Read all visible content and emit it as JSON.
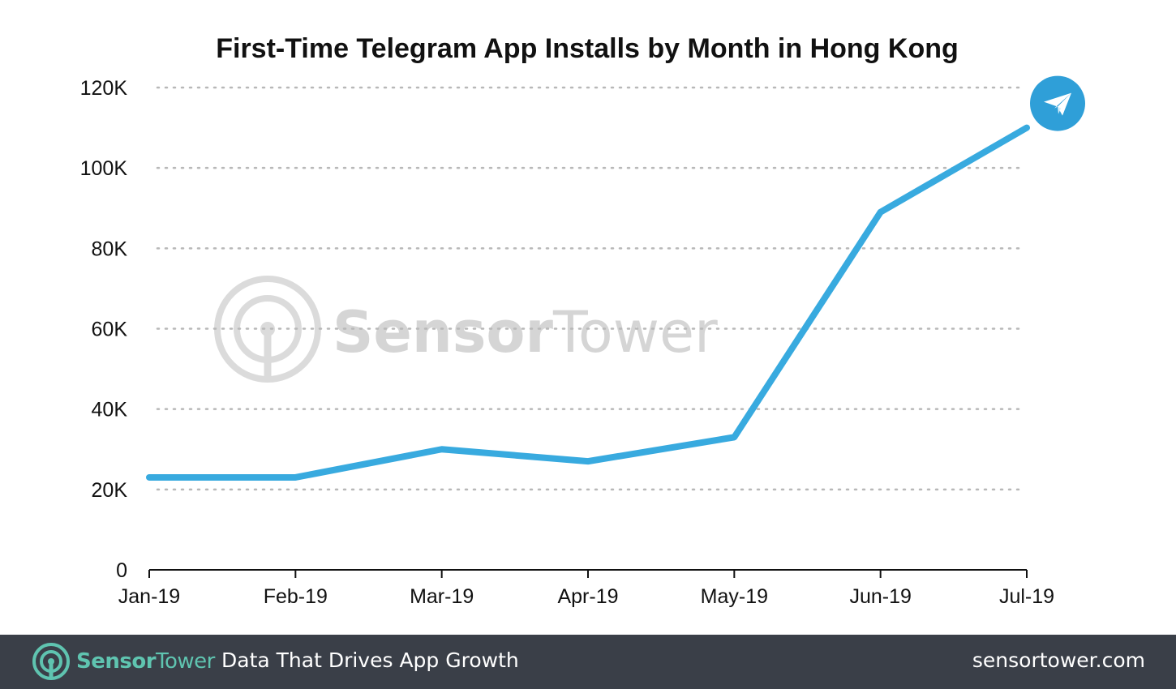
{
  "chart_data": {
    "type": "line",
    "title": "First-Time Telegram App Installs by Month in Hong Kong",
    "xlabel": "",
    "ylabel": "",
    "categories": [
      "Jan-19",
      "Feb-19",
      "Mar-19",
      "Apr-19",
      "May-19",
      "Jun-19",
      "Jul-19"
    ],
    "values": [
      23000,
      23000,
      30000,
      27000,
      33000,
      89000,
      110000
    ],
    "ylim": [
      0,
      120000
    ],
    "yticks": [
      0,
      20000,
      40000,
      60000,
      80000,
      100000,
      120000
    ],
    "ytick_labels": [
      "0",
      "20K",
      "40K",
      "60K",
      "80K",
      "100K",
      "120K"
    ],
    "grid": true,
    "line_color": "#38aadf",
    "end_marker_icon": "telegram-icon"
  },
  "watermark": {
    "text_bold": "Sensor",
    "text_light": "Tower",
    "icon": "sensortower-icon"
  },
  "footer": {
    "brand_bold": "Sensor",
    "brand_light": "Tower",
    "tagline": "Data That Drives App Growth",
    "site": "sensortower.com",
    "background": "#3a3f48",
    "accent": "#5fc4b0"
  }
}
